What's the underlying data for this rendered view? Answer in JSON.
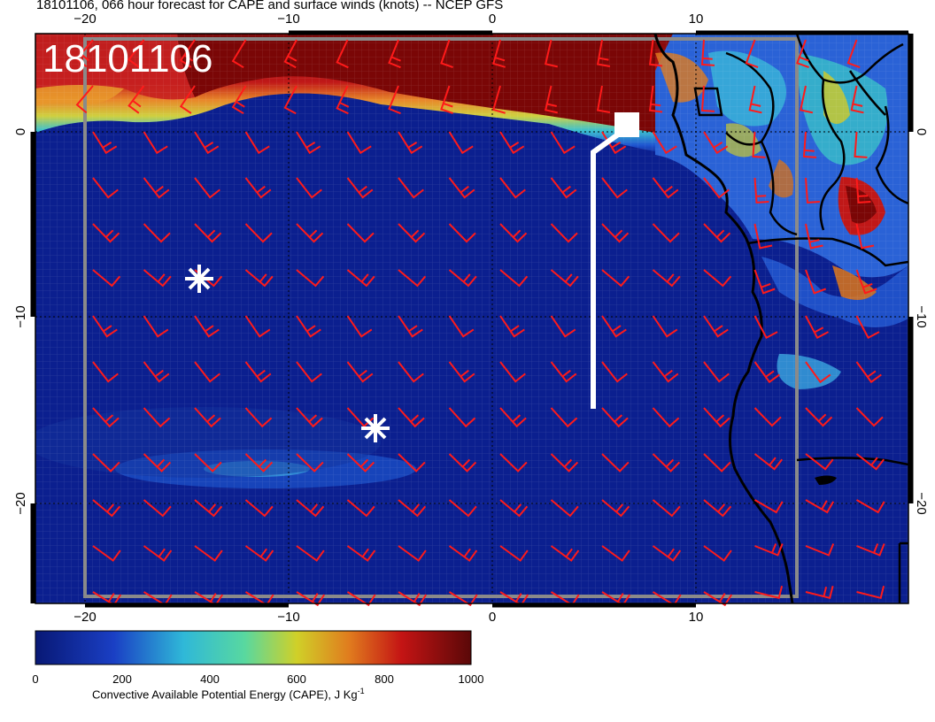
{
  "title": "18101106, 066 hour forecast for CAPE and surface winds (knots) -- NCEP GFS",
  "stamp": "18101106",
  "axes": {
    "lon_ticks": [
      "−20",
      "−10",
      "0",
      "10"
    ],
    "lat_ticks_left": [
      "0",
      "−10",
      "−20"
    ],
    "lat_ticks_right": [
      "0",
      "−10",
      "−20"
    ]
  },
  "colorbar": {
    "ticks": [
      "0",
      "200",
      "400",
      "600",
      "800",
      "1000"
    ],
    "label_main": "Convective Available Potential Energy (CAPE), J Kg",
    "label_sup": "-1",
    "colors": [
      "#0a1a7a",
      "#1f5fd6",
      "#38c8c8",
      "#c8c830",
      "#d07020",
      "#b81010",
      "#6a0a0a"
    ]
  },
  "markers": {
    "star_icons": "asterisk-icon",
    "track": "white flight-track line"
  },
  "colors": {
    "ocean": "#0b1f8f",
    "high_cape": "#7a0606",
    "barb": "#ff1a1a",
    "coast": "#000000",
    "track": "#ffffff"
  }
}
